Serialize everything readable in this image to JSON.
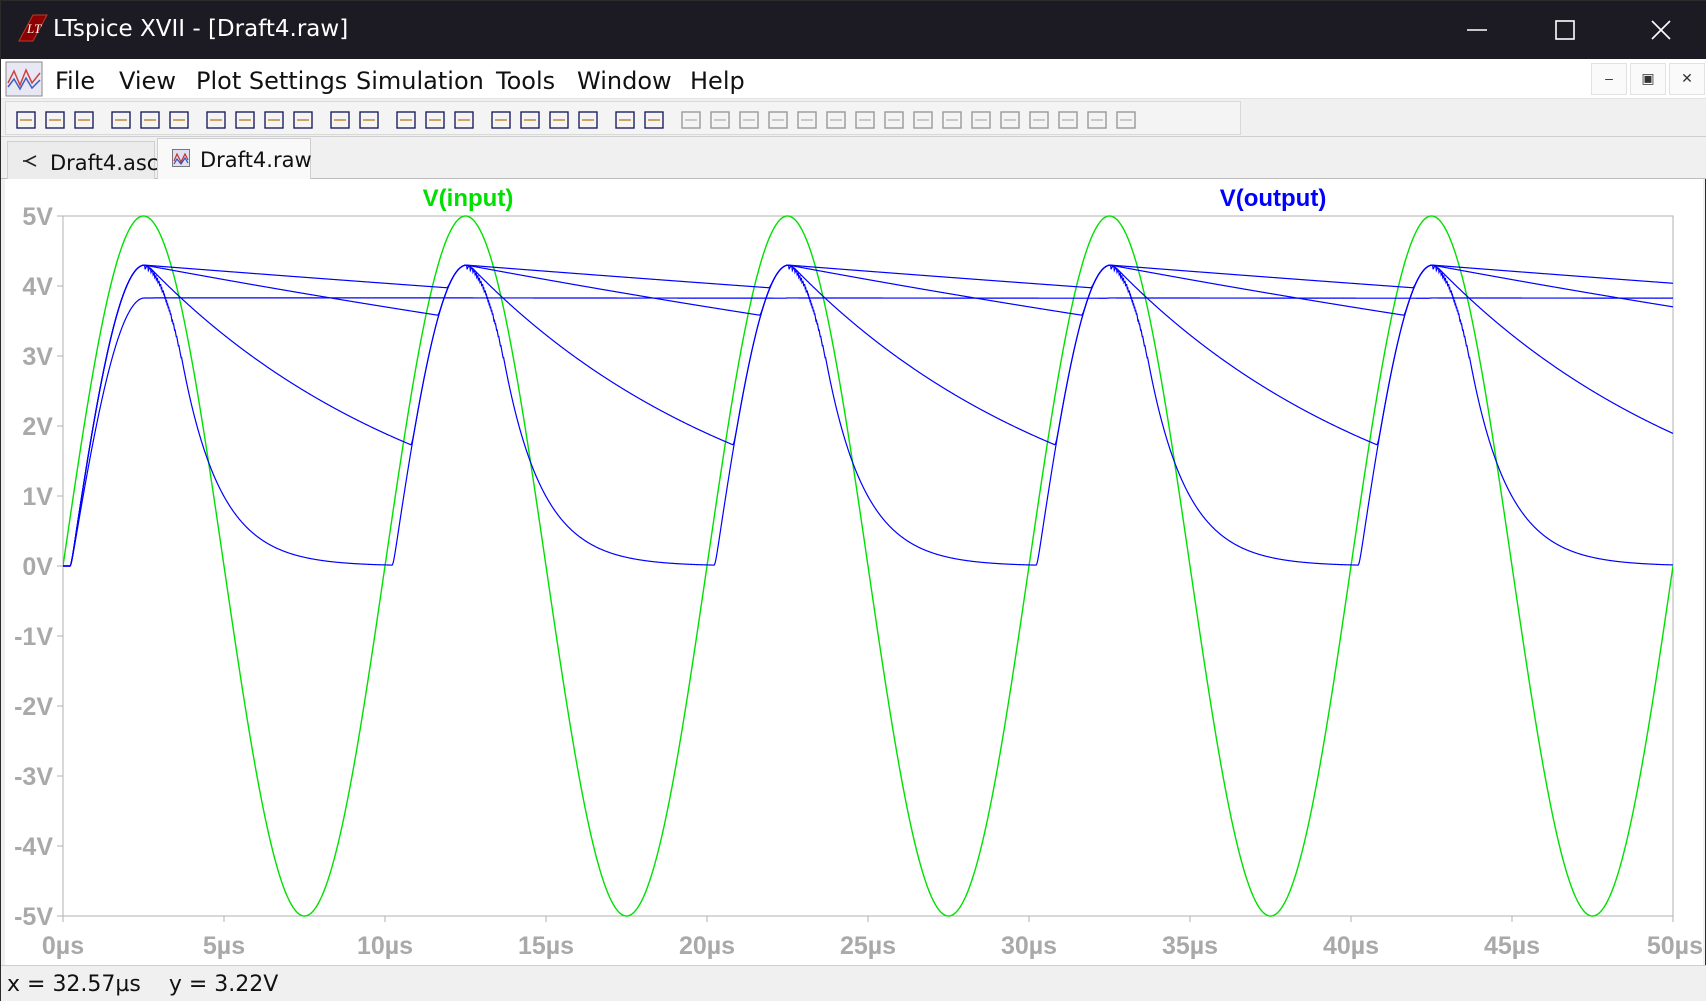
{
  "window": {
    "title": "LTspice XVII - [Draft4.raw]"
  },
  "menu": {
    "items": [
      "File",
      "View",
      "Plot Settings",
      "Simulation",
      "Tools",
      "Window",
      "Help"
    ]
  },
  "mdi_buttons": [
    "–",
    "▣",
    "✕"
  ],
  "toolbar": {
    "icons": [
      "new-schematic-icon",
      "open-icon",
      "save-icon",
      "control-panel-icon",
      "run-icon",
      "halt-icon",
      "zoom-in-icon",
      "zoom-area-icon",
      "zoom-out-icon",
      "zoom-fit-icon",
      "autorange-icon",
      "manual-limits-icon",
      "tile-horizontal-icon",
      "cascade-icon",
      "tile-vertical-icon",
      "cut-icon",
      "copy-icon",
      "paste-icon",
      "find-icon",
      "print-icon",
      "print-preview-icon",
      "wire-icon",
      "ground-icon",
      "label-net-icon",
      "resistor-icon",
      "capacitor-icon",
      "inductor-icon",
      "diode-icon",
      "component-icon",
      "move-icon",
      "drag-icon",
      "undo-icon",
      "redo-icon",
      "rotate-icon",
      "mirror-icon",
      "text-icon",
      "spice-directive-icon"
    ]
  },
  "tabs": [
    {
      "label": "Draft4.asc",
      "icon": "schematic-icon",
      "active": false
    },
    {
      "label": "Draft4.raw",
      "icon": "waveform-icon",
      "active": true
    }
  ],
  "status": {
    "text": "x = 32.57µs    y = 3.22V"
  },
  "colors": {
    "input": "#00e000",
    "output": "#0000ff",
    "axis_label": "#a9a9a9",
    "title_bar": "#1c1a22"
  },
  "chart_data": {
    "type": "line",
    "title": "",
    "xlabel": "",
    "ylabel": "",
    "x_unit": "µs",
    "y_unit": "V",
    "xlim": [
      0,
      50
    ],
    "ylim": [
      -5,
      5
    ],
    "x_ticks": [
      "0µs",
      "5µs",
      "10µs",
      "15µs",
      "20µs",
      "25µs",
      "30µs",
      "35µs",
      "40µs",
      "45µs",
      "50µs"
    ],
    "y_ticks": [
      "5V",
      "4V",
      "3V",
      "2V",
      "1V",
      "0V",
      "-1V",
      "-2V",
      "-3V",
      "-4V",
      "-5V"
    ],
    "grid": false,
    "legend_entries": [
      {
        "name": "V(input)",
        "color": "#00e000"
      },
      {
        "name": "V(output)",
        "color": "#0000ff"
      }
    ],
    "series": [
      {
        "name": "V(input)",
        "color": "#00e000",
        "kind": "sine",
        "amplitude": 5,
        "period_us": 10,
        "peak_time_us": 2.5
      },
      {
        "name": "V(output)",
        "color": "#0000ff",
        "kind": "rectifier_step",
        "period_us": 10,
        "peak_v": 4.3,
        "step_runs": [
          {
            "decay_tau_us": 10000,
            "peak_v": 3.83,
            "first_cycle_only": true
          },
          {
            "decay_tau_us": 120
          },
          {
            "decay_tau_us": 50
          },
          {
            "decay_tau_us": 9
          },
          {
            "decay_tau_us": 1.2
          }
        ]
      }
    ]
  }
}
